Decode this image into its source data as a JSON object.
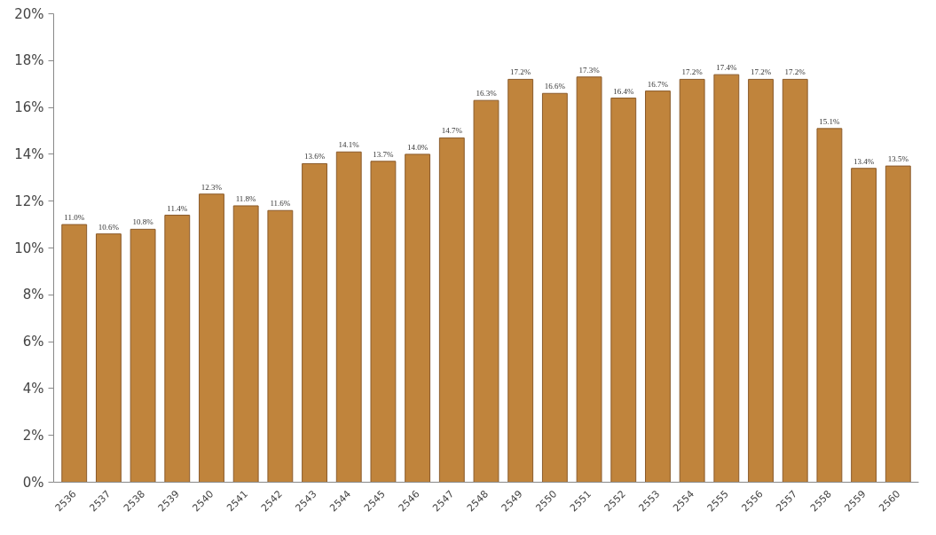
{
  "chart_data": {
    "type": "bar",
    "categories": [
      "2536",
      "2537",
      "2538",
      "2539",
      "2540",
      "2541",
      "2542",
      "2543",
      "2544",
      "2545",
      "2546",
      "2547",
      "2548",
      "2549",
      "2550",
      "2551",
      "2552",
      "2553",
      "2554",
      "2555",
      "2556",
      "2557",
      "2558",
      "2559",
      "2560"
    ],
    "values": [
      11.0,
      10.6,
      10.8,
      11.4,
      12.3,
      11.8,
      11.6,
      13.6,
      14.1,
      13.7,
      14.0,
      14.7,
      16.3,
      17.2,
      16.6,
      17.3,
      16.4,
      16.7,
      17.2,
      17.4,
      17.2,
      17.2,
      15.1,
      13.4,
      13.5
    ],
    "value_labels": [
      "11.0%",
      "10.6%",
      "10.8%",
      "11.4%",
      "12.3%",
      "11.8%",
      "11.6%",
      "13.6%",
      "14.1%",
      "13.7%",
      "14.0%",
      "14.7%",
      "16.3%",
      "17.2%",
      "16.6%",
      "17.3%",
      "16.4%",
      "16.7%",
      "17.2%",
      "17.4%",
      "17.2%",
      "17.2%",
      "15.1%",
      "13.4%",
      "13.5%"
    ],
    "color": "#c0843c",
    "ylim": [
      0,
      20
    ],
    "yticks": [
      {
        "value": 0,
        "label": "0%"
      },
      {
        "value": 2,
        "label": "2%"
      },
      {
        "value": 4,
        "label": "4%"
      },
      {
        "value": 6,
        "label": "6%"
      },
      {
        "value": 8,
        "label": "8%"
      },
      {
        "value": 10,
        "label": "10%"
      },
      {
        "value": 12,
        "label": "12%"
      },
      {
        "value": 14,
        "label": "14%"
      },
      {
        "value": 16,
        "label": "16%"
      },
      {
        "value": 18,
        "label": "18%"
      },
      {
        "value": 20,
        "label": "20%"
      }
    ],
    "grid": false
  }
}
